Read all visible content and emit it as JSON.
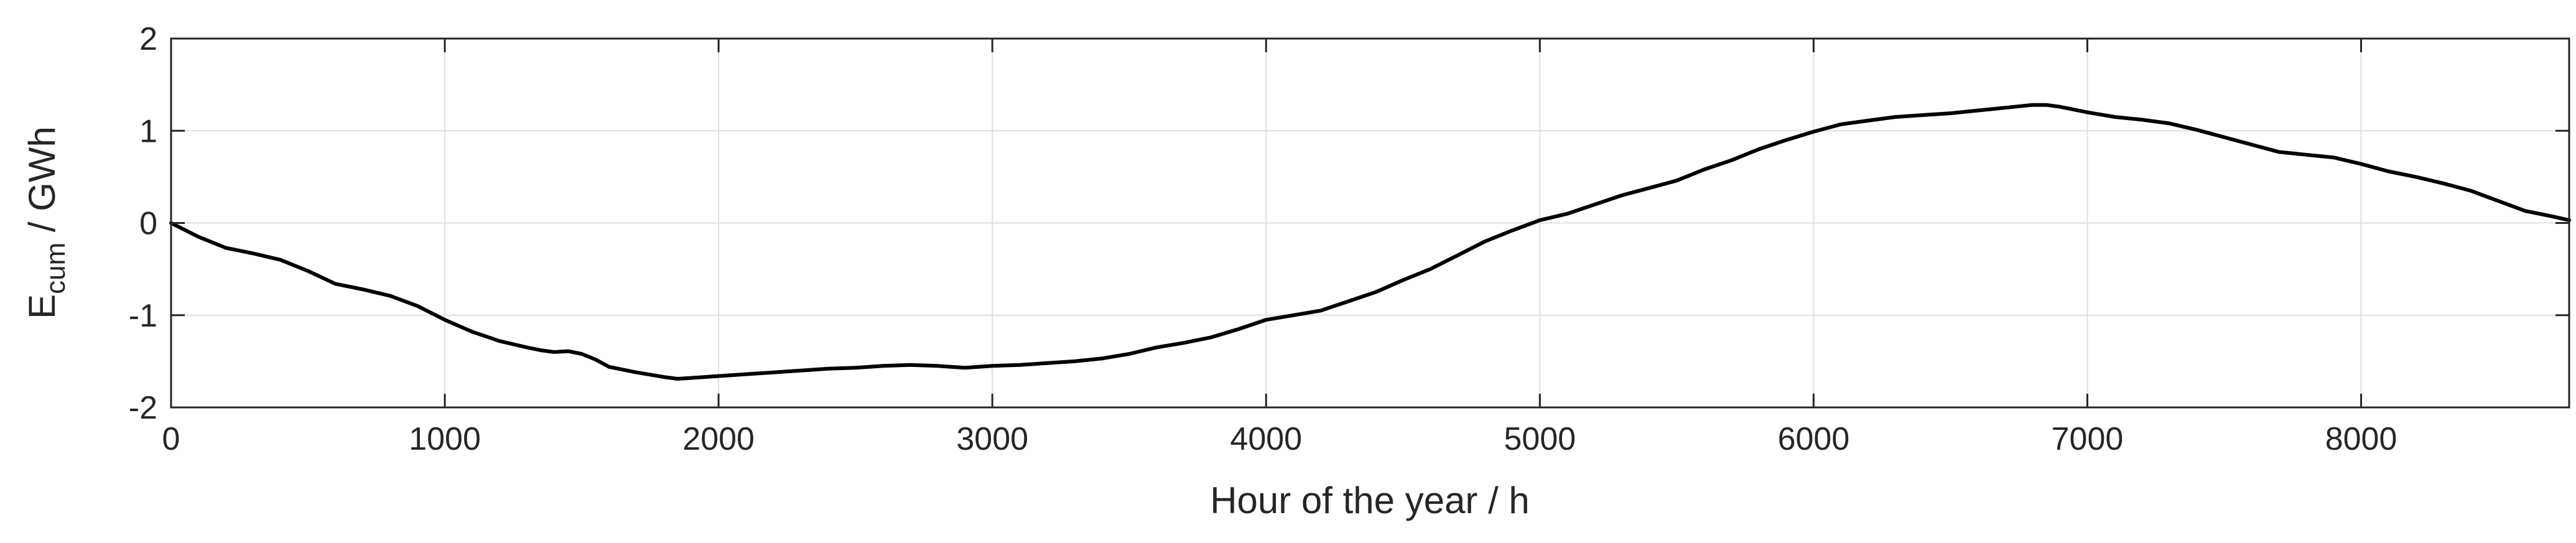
{
  "chart_data": {
    "type": "line",
    "xlabel": "Hour of the year / h",
    "ylabel": {
      "main": "E",
      "subscript": "cum",
      "suffix": " / GWh"
    },
    "xlim": [
      0,
      8760
    ],
    "ylim": [
      -2,
      2
    ],
    "xticks": [
      0,
      1000,
      2000,
      3000,
      4000,
      5000,
      6000,
      7000,
      8000
    ],
    "xtick_labels": [
      "0",
      "1000",
      "2000",
      "3000",
      "4000",
      "5000",
      "6000",
      "7000",
      "8000"
    ],
    "yticks": [
      -2,
      -1,
      0,
      1,
      2
    ],
    "ytick_labels": [
      "-2",
      "-1",
      "0",
      "1",
      "2"
    ],
    "grid": true,
    "series": [
      {
        "color": "#000000",
        "x": [
          0,
          100,
          200,
          300,
          400,
          500,
          600,
          700,
          800,
          900,
          1000,
          1100,
          1200,
          1300,
          1350,
          1400,
          1450,
          1500,
          1550,
          1600,
          1700,
          1800,
          1850,
          1900,
          2000,
          2100,
          2200,
          2300,
          2400,
          2500,
          2600,
          2700,
          2800,
          2900,
          3000,
          3100,
          3200,
          3300,
          3400,
          3500,
          3600,
          3700,
          3800,
          3900,
          4000,
          4100,
          4200,
          4300,
          4400,
          4500,
          4600,
          4700,
          4800,
          4900,
          5000,
          5100,
          5200,
          5300,
          5400,
          5500,
          5600,
          5700,
          5800,
          5900,
          6000,
          6100,
          6200,
          6300,
          6400,
          6500,
          6600,
          6700,
          6800,
          6850,
          6900,
          7000,
          7100,
          7200,
          7300,
          7400,
          7500,
          7600,
          7700,
          7800,
          7900,
          8000,
          8100,
          8200,
          8300,
          8400,
          8500,
          8600,
          8700,
          8760
        ],
        "y": [
          0,
          -0.15,
          -0.27,
          -0.33,
          -0.4,
          -0.52,
          -0.66,
          -0.72,
          -0.79,
          -0.9,
          -1.05,
          -1.18,
          -1.28,
          -1.35,
          -1.38,
          -1.4,
          -1.39,
          -1.42,
          -1.48,
          -1.56,
          -1.62,
          -1.67,
          -1.69,
          -1.68,
          -1.66,
          -1.64,
          -1.62,
          -1.6,
          -1.58,
          -1.57,
          -1.55,
          -1.54,
          -1.55,
          -1.57,
          -1.55,
          -1.54,
          -1.52,
          -1.5,
          -1.47,
          -1.42,
          -1.35,
          -1.3,
          -1.24,
          -1.15,
          -1.05,
          -1.0,
          -0.95,
          -0.85,
          -0.75,
          -0.62,
          -0.5,
          -0.35,
          -0.2,
          -0.08,
          0.03,
          0.1,
          0.2,
          0.3,
          0.38,
          0.46,
          0.58,
          0.68,
          0.8,
          0.9,
          0.99,
          1.07,
          1.11,
          1.15,
          1.17,
          1.19,
          1.22,
          1.25,
          1.28,
          1.28,
          1.26,
          1.2,
          1.15,
          1.12,
          1.08,
          1.01,
          0.93,
          0.85,
          0.77,
          0.74,
          0.71,
          0.64,
          0.56,
          0.5,
          0.43,
          0.35,
          0.24,
          0.13,
          0.07,
          0.03
        ]
      }
    ]
  }
}
